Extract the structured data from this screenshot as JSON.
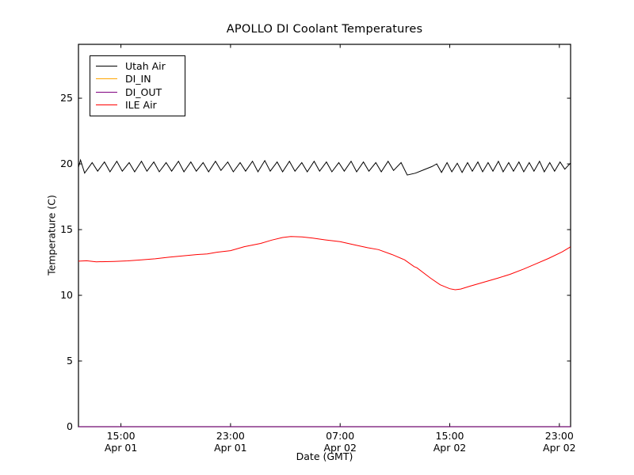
{
  "window": {
    "background": "#ffffff"
  },
  "chart_data": {
    "type": "line",
    "title": "APOLLO DI Coolant Temperatures",
    "grid": false,
    "legend_position": "upper left",
    "x_axis": {
      "label": "Date (GMT)",
      "units": "hours since Apr 01 00:00 GMT",
      "range": [
        11.9,
        47.82
      ],
      "ticks": [
        {
          "value": 15,
          "time": "15:00",
          "date": "Apr 01"
        },
        {
          "value": 23,
          "time": "23:00",
          "date": "Apr 01"
        },
        {
          "value": 31,
          "time": "07:00",
          "date": "Apr 02"
        },
        {
          "value": 39,
          "time": "15:00",
          "date": "Apr 02"
        },
        {
          "value": 47,
          "time": "23:00",
          "date": "Apr 02"
        }
      ]
    },
    "y_axis": {
      "label": "Temperature (C)",
      "range": [
        0,
        29.1
      ],
      "ticks": [
        0,
        5,
        10,
        15,
        20,
        25
      ]
    },
    "series": [
      {
        "name": "Utah Air",
        "color": "#000000",
        "points": [
          [
            11.9,
            19.75
          ],
          [
            12.05,
            20.3
          ],
          [
            12.35,
            19.3
          ],
          [
            12.9,
            20.1
          ],
          [
            13.3,
            19.45
          ],
          [
            13.8,
            20.15
          ],
          [
            14.2,
            19.4
          ],
          [
            14.7,
            20.2
          ],
          [
            15.1,
            19.45
          ],
          [
            15.6,
            20.1
          ],
          [
            16.0,
            19.4
          ],
          [
            16.5,
            20.2
          ],
          [
            16.9,
            19.45
          ],
          [
            17.4,
            20.15
          ],
          [
            17.8,
            19.4
          ],
          [
            18.3,
            20.1
          ],
          [
            18.7,
            19.45
          ],
          [
            19.2,
            20.2
          ],
          [
            19.6,
            19.4
          ],
          [
            20.1,
            20.15
          ],
          [
            20.5,
            19.45
          ],
          [
            21.0,
            20.1
          ],
          [
            21.4,
            19.4
          ],
          [
            21.9,
            20.2
          ],
          [
            22.3,
            19.5
          ],
          [
            22.8,
            20.15
          ],
          [
            23.2,
            19.4
          ],
          [
            23.7,
            20.1
          ],
          [
            24.1,
            19.45
          ],
          [
            24.6,
            20.2
          ],
          [
            25.0,
            19.4
          ],
          [
            25.5,
            20.25
          ],
          [
            25.9,
            19.45
          ],
          [
            26.4,
            20.15
          ],
          [
            26.8,
            19.4
          ],
          [
            27.3,
            20.2
          ],
          [
            27.7,
            19.45
          ],
          [
            28.2,
            20.1
          ],
          [
            28.6,
            19.4
          ],
          [
            29.1,
            20.2
          ],
          [
            29.5,
            19.45
          ],
          [
            30.0,
            20.15
          ],
          [
            30.4,
            19.4
          ],
          [
            30.9,
            20.1
          ],
          [
            31.3,
            19.45
          ],
          [
            31.8,
            20.2
          ],
          [
            32.2,
            19.4
          ],
          [
            32.7,
            20.15
          ],
          [
            33.1,
            19.45
          ],
          [
            33.6,
            20.1
          ],
          [
            34.0,
            19.4
          ],
          [
            34.5,
            20.2
          ],
          [
            34.9,
            19.5
          ],
          [
            35.45,
            20.1
          ],
          [
            35.9,
            19.15
          ],
          [
            36.5,
            19.3
          ],
          [
            37.1,
            19.55
          ],
          [
            37.7,
            19.8
          ],
          [
            38.05,
            20.0
          ],
          [
            38.4,
            19.35
          ],
          [
            38.8,
            20.1
          ],
          [
            39.15,
            19.4
          ],
          [
            39.55,
            20.05
          ],
          [
            39.9,
            19.35
          ],
          [
            40.3,
            20.1
          ],
          [
            40.65,
            19.45
          ],
          [
            41.05,
            20.15
          ],
          [
            41.4,
            19.4
          ],
          [
            41.8,
            20.1
          ],
          [
            42.15,
            19.45
          ],
          [
            42.55,
            20.2
          ],
          [
            42.9,
            19.4
          ],
          [
            43.3,
            20.1
          ],
          [
            43.65,
            19.45
          ],
          [
            44.05,
            20.15
          ],
          [
            44.4,
            19.4
          ],
          [
            44.8,
            20.1
          ],
          [
            45.15,
            19.45
          ],
          [
            45.55,
            20.2
          ],
          [
            45.9,
            19.4
          ],
          [
            46.3,
            20.1
          ],
          [
            46.65,
            19.45
          ],
          [
            47.05,
            20.15
          ],
          [
            47.4,
            19.6
          ],
          [
            47.8,
            20.05
          ]
        ]
      },
      {
        "name": "DI_IN",
        "color": "#ffa500",
        "points": [
          [
            11.9,
            0.0
          ],
          [
            47.82,
            0.0
          ]
        ]
      },
      {
        "name": "DI_OUT",
        "color": "#800080",
        "points": [
          [
            11.9,
            0.0
          ],
          [
            47.82,
            0.0
          ]
        ]
      },
      {
        "name": "ILE Air",
        "color": "#ff0000",
        "points": [
          [
            11.9,
            12.6
          ],
          [
            12.5,
            12.63
          ],
          [
            13.2,
            12.55
          ],
          [
            14.5,
            12.58
          ],
          [
            15.5,
            12.62
          ],
          [
            16.5,
            12.7
          ],
          [
            17.5,
            12.78
          ],
          [
            18.5,
            12.9
          ],
          [
            19.5,
            13.0
          ],
          [
            20.5,
            13.1
          ],
          [
            21.3,
            13.15
          ],
          [
            22.0,
            13.28
          ],
          [
            23.0,
            13.4
          ],
          [
            24.0,
            13.7
          ],
          [
            25.2,
            13.95
          ],
          [
            26.0,
            14.2
          ],
          [
            26.8,
            14.4
          ],
          [
            27.4,
            14.47
          ],
          [
            28.2,
            14.45
          ],
          [
            29.0,
            14.35
          ],
          [
            29.9,
            14.22
          ],
          [
            31.0,
            14.08
          ],
          [
            32.0,
            13.85
          ],
          [
            33.0,
            13.62
          ],
          [
            33.8,
            13.48
          ],
          [
            34.8,
            13.1
          ],
          [
            35.7,
            12.7
          ],
          [
            36.4,
            12.18
          ],
          [
            36.6,
            12.1
          ],
          [
            37.6,
            11.3
          ],
          [
            38.3,
            10.8
          ],
          [
            39.0,
            10.5
          ],
          [
            39.4,
            10.42
          ],
          [
            39.8,
            10.48
          ],
          [
            40.5,
            10.7
          ],
          [
            41.5,
            11.0
          ],
          [
            42.5,
            11.3
          ],
          [
            43.4,
            11.6
          ],
          [
            44.4,
            12.0
          ],
          [
            45.3,
            12.4
          ],
          [
            46.2,
            12.8
          ],
          [
            47.2,
            13.3
          ],
          [
            47.8,
            13.68
          ]
        ]
      }
    ]
  }
}
